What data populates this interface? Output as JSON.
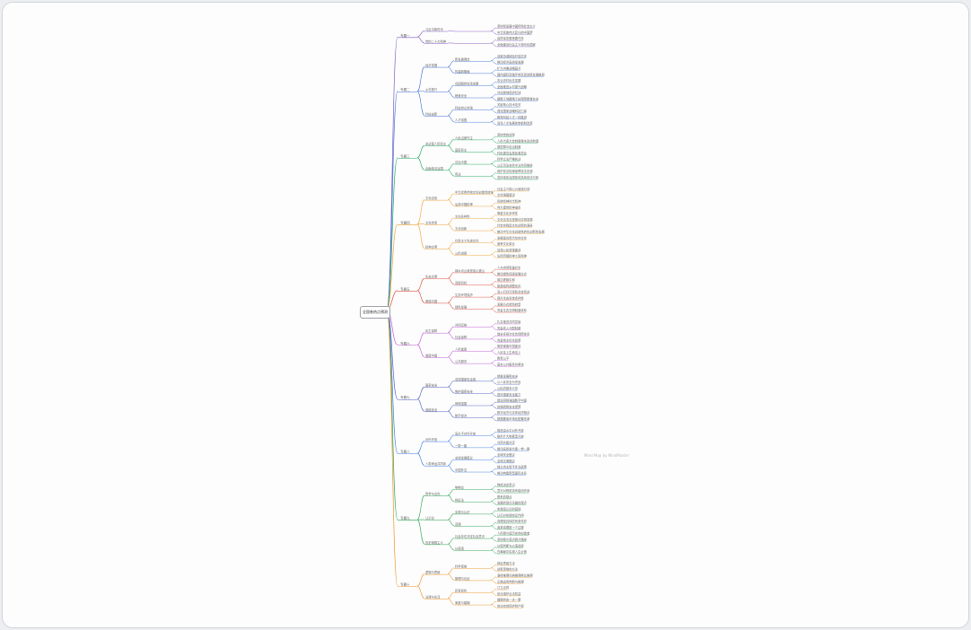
{
  "root": "全国卷热点预测",
  "watermark": "Mind Map by MindMaster",
  "colors": [
    "#7e57c2",
    "#3b6fd8",
    "#1aa860",
    "#f0a030",
    "#e34c3c",
    "#c058d8",
    "#4a5ec8",
    "#3a7ae8",
    "#22a04a",
    "#f09020"
  ],
  "branches": [
    {
      "label": "专题一",
      "children": [
        {
          "label": "习近平新时代",
          "children": [
            {
              "label": "",
              "leaves": [
                "坚持和发展中国特色社会主义",
                "中华民族伟大复兴的中国梦"
              ]
            }
          ]
        },
        {
          "label": "党的二十大精神",
          "children": [
            {
              "label": "",
              "leaves": [
                "高质量发展首要任务",
                "全面建设社会主义现代化国家"
              ]
            }
          ]
        }
      ]
    },
    {
      "label": "专题二",
      "children": [
        {
          "label": "经济发展",
          "children": [
            {
              "label": "新发展理念",
              "leaves": [
                "创新协调绿色开放共享",
                "推动经济高质量发展"
              ]
            },
            {
              "label": "构建新格局",
              "leaves": [
                "扩大内需战略基点",
                "国内国际双循环相互促进新发展格局"
              ]
            }
          ]
        },
        {
          "label": "乡村振兴",
          "children": [
            {
              "label": "巩固脱贫攻坚成果",
              "leaves": [
                "农业农村优先发展",
                "全面推进乡村振兴战略"
              ]
            },
            {
              "label": "粮食安全",
              "leaves": [
                "守住耕地保护红线",
                "藏粮于地藏粮于技保障粮食安全"
              ]
            }
          ]
        },
        {
          "label": "科技创新",
          "children": [
            {
              "label": "科技自立自强",
              "leaves": [
                "关键核心技术攻关",
                "强化国家战略科技力量"
              ]
            },
            {
              "label": "人才强国",
              "leaves": [
                "教育科技人才一体推进",
                "深化人才发展体制机制改革"
              ]
            }
          ]
        }
      ]
    },
    {
      "label": "专题三",
      "children": [
        {
          "label": "全过程人民民主",
          "children": [
            {
              "label": "人民当家作主",
              "leaves": [
                "坚持党的领导",
                "人民代表大会制度根本政治制度"
              ]
            },
            {
              "label": "基层民主",
              "leaves": [
                "基层群众自治制度",
                "村民委员会居民委员会"
              ]
            }
          ]
        },
        {
          "label": "全面依法治国",
          "children": [
            {
              "label": "法治中国",
              "leaves": [
                "科学立法严格执法",
                "公正司法全民守法共同推进"
              ]
            },
            {
              "label": "宪法",
              "leaves": [
                "维护宪法权威保障宪法实施",
                "坚持依宪治国依宪执政依法行政"
              ]
            }
          ]
        }
      ]
    },
    {
      "label": "专题四",
      "children": [
        {
          "label": "文化自信",
          "children": [
            {
              "label": "中华优秀传统文化创造性转化",
              "leaves": [
                "社会主义核心价值观引领",
                "文化强国建设"
              ]
            },
            {
              "label": "弘扬中国精神",
              "leaves": [
                "民族精神时代精神",
                "伟大建党精神谱系"
              ]
            }
          ]
        },
        {
          "label": "文化传承",
          "children": [
            {
              "label": "文化多样性",
              "leaves": [
                "尊重文化多样性",
                "文化交流互鉴推动文明发展"
              ]
            },
            {
              "label": "文化创新",
              "leaves": [
                "社会实践是文化创新的源泉",
                "推动中华文化创造性转化创新性发展"
              ]
            }
          ]
        },
        {
          "label": "精神文明",
          "children": [
            {
              "label": "社会主义先进文化",
              "leaves": [
                "发展面向现代化的文化",
                "繁荣文化事业"
              ]
            },
            {
              "label": "公民道德",
              "leaves": [
                "加强公民道德建设",
                "弘扬劳模精神工匠精神"
              ]
            }
          ]
        }
      ]
    },
    {
      "label": "专题五",
      "children": [
        {
          "label": "生态文明",
          "children": [
            {
              "label": "绿水青山就是金山银山",
              "leaves": [
                "人与自然和谐共生",
                "推动绿色低碳发展方式"
              ]
            },
            {
              "label": "双碳目标",
              "leaves": [
                "碳达峰碳中和",
                "能源结构调整优化"
              ]
            }
          ]
        },
        {
          "label": "美丽中国",
          "children": [
            {
              "label": "生态环境保护",
              "leaves": [
                "深入打好污染防治攻坚战",
                "提升生态系统多样性"
              ]
            },
            {
              "label": "绿色发展",
              "leaves": [
                "发展方式绿色转型",
                "完善生态文明制度体系"
              ]
            }
          ]
        }
      ]
    },
    {
      "label": "专题六",
      "children": [
        {
          "label": "民生保障",
          "children": [
            {
              "label": "共同富裕",
              "leaves": [
                "扎实推进共同富裕",
                "完善收入分配制度"
              ]
            },
            {
              "label": "社会保障",
              "leaves": [
                "健全多层次社会保障体系",
                "完善就业优先政策"
              ]
            }
          ]
        },
        {
          "label": "健康中国",
          "children": [
            {
              "label": "人民健康",
              "leaves": [
                "推进健康中国建设",
                "人民至上生命至上"
              ]
            },
            {
              "label": "公共服务",
              "leaves": [
                "教育公平",
                "基本公共服务均等化"
              ]
            }
          ]
        }
      ]
    },
    {
      "label": "专题七",
      "children": [
        {
          "label": "国家安全",
          "children": [
            {
              "label": "总体国家安全观",
              "leaves": [
                "统筹发展和安全",
                "以人民安全为宗旨"
              ]
            },
            {
              "label": "维护国家安全",
              "leaves": [
                "公民的基本义务",
                "提升国家安全能力"
              ]
            }
          ]
        },
        {
          "label": "网络安全",
          "children": [
            {
              "label": "网络强国",
              "leaves": [
                "建设网络强国数字中国",
                "加强网络安全保障"
              ]
            },
            {
              "label": "数字经济",
              "leaves": [
                "数字经济与实体经济融合",
                "数据要素市场化配置改革"
              ]
            }
          ]
        }
      ]
    },
    {
      "label": "专题八",
      "children": [
        {
          "label": "对外开放",
          "children": [
            {
              "label": "高水平对外开放",
              "leaves": [
                "推进高水平对外开放",
                "稳步扩大制度型开放"
              ]
            },
            {
              "label": "一带一路",
              "leaves": [
                "共商共建共享",
                "推动高质量共建一带一路"
              ]
            }
          ]
        },
        {
          "label": "人类命运共同体",
          "children": [
            {
              "label": "全球发展倡议",
              "leaves": [
                "全球安全倡议",
                "全球文明倡议"
              ]
            },
            {
              "label": "中国外交",
              "leaves": [
                "独立自主和平外交政策",
                "推动构建新型国际关系"
              ]
            }
          ]
        }
      ]
    },
    {
      "label": "专题九",
      "children": [
        {
          "label": "哲学与文化",
          "children": [
            {
              "label": "唯物论",
              "leaves": [
                "物质决定意识",
                "意识对物质具有能动作用"
              ]
            },
            {
              "label": "辩证法",
              "leaves": [
                "联系的观点",
                "发展的观点矛盾的观点"
              ]
            }
          ]
        },
        {
          "label": "认识论",
          "children": [
            {
              "label": "实践与认识",
              "leaves": [
                "实践是认识的基础",
                "认识对实践有反作用"
              ]
            },
            {
              "label": "真理",
              "leaves": [
                "真理是具体的有条件的",
                "追求真理是一个过程"
              ]
            }
          ]
        },
        {
          "label": "历史唯物主义",
          "children": [
            {
              "label": "社会存在决定社会意识",
              "leaves": [
                "人民群众是历史的创造者",
                "坚持群众观点群众路线"
              ]
            },
            {
              "label": "价值观",
              "leaves": [
                "价值判断与价值选择",
                "在奉献中实现人生价值"
              ]
            }
          ]
        }
      ]
    },
    {
      "label": "专题十",
      "children": [
        {
          "label": "逻辑与思维",
          "children": [
            {
              "label": "科学思维",
              "leaves": [
                "辩证思维方法",
                "创新思维的方法"
              ]
            },
            {
              "label": "推理与论证",
              "leaves": [
                "演绎推理归纳推理类比推理",
                "正确运用判断与推理"
              ]
            }
          ]
        },
        {
          "label": "法律与生活",
          "children": [
            {
              "label": "民事权利",
              "leaves": [
                "订立合同",
                "依法维护合法权益"
              ]
            },
            {
              "label": "家庭与婚姻",
              "leaves": [
                "婚姻自由一夫一妻",
                "依法有效保护财产权"
              ]
            }
          ]
        }
      ]
    }
  ]
}
